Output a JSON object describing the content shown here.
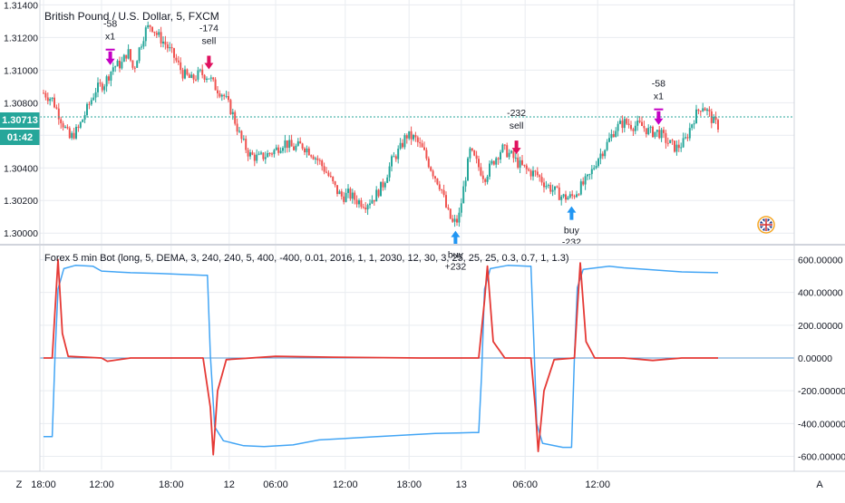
{
  "header": {
    "symbol_title": "British Pound / U.S. Dollar, 5, FXCM",
    "indicator_title": "Forex 5 min Bot (long, 5, DEMA, 3, 240, 240, 5, 400, -400, 0.01, 2016, 1, 1, 2030, 12, 30, 3, 25, 25, 25, 0.3, 0.7, 1, 1.3)"
  },
  "price_badge": {
    "value": "1.30713",
    "countdown": "01:42"
  },
  "colors": {
    "up": "#26a69a",
    "down": "#ef5350",
    "sell_arrow": "#e0115f",
    "buy_arrow": "#2196f3",
    "exit_marker": "#c400c4",
    "indicator_blue": "#42a5f5",
    "indicator_red": "#e53935",
    "price_line": "#26a69a",
    "grid": "#e9ecf1",
    "axis_text": "#131722"
  },
  "toolbar": {
    "left_label": "Z",
    "right_label": "A"
  },
  "flag_icon": "uk-flag-icon",
  "chart_data": [
    {
      "type": "candlestick",
      "title": "British Pound / U.S. Dollar, 5, FXCM",
      "y_ticks": [
        "1.31400",
        "1.31200",
        "1.31000",
        "1.30800",
        "1.30600",
        "1.30400",
        "1.30200",
        "1.30000"
      ],
      "ylim": [
        1.2994,
        1.3143
      ],
      "current_price": 1.30713,
      "path": [
        [
          0,
          1.3086
        ],
        [
          6,
          1.3082
        ],
        [
          12,
          1.307
        ],
        [
          18,
          1.3058
        ],
        [
          24,
          1.3064
        ],
        [
          30,
          1.3076
        ],
        [
          36,
          1.3088
        ],
        [
          42,
          1.3092
        ],
        [
          48,
          1.3102
        ],
        [
          54,
          1.3104
        ],
        [
          58,
          1.3112
        ],
        [
          62,
          1.31
        ],
        [
          66,
          1.3113
        ],
        [
          70,
          1.3124
        ],
        [
          74,
          1.3128
        ],
        [
          78,
          1.3122
        ],
        [
          84,
          1.3116
        ],
        [
          90,
          1.3108
        ],
        [
          96,
          1.3098
        ],
        [
          102,
          1.3094
        ],
        [
          108,
          1.3098
        ],
        [
          114,
          1.3096
        ],
        [
          118,
          1.309
        ],
        [
          124,
          1.3085
        ],
        [
          130,
          1.3074
        ],
        [
          136,
          1.3058
        ],
        [
          142,
          1.3048
        ],
        [
          148,
          1.3046
        ],
        [
          154,
          1.3048
        ],
        [
          160,
          1.3051
        ],
        [
          166,
          1.3056
        ],
        [
          172,
          1.3052
        ],
        [
          178,
          1.3054
        ],
        [
          184,
          1.305
        ],
        [
          190,
          1.3044
        ],
        [
          196,
          1.3036
        ],
        [
          202,
          1.3026
        ],
        [
          206,
          1.3022
        ],
        [
          210,
          1.3024
        ],
        [
          216,
          1.302
        ],
        [
          222,
          1.3018
        ],
        [
          228,
          1.3022
        ],
        [
          234,
          1.303
        ],
        [
          240,
          1.3044
        ],
        [
          246,
          1.3052
        ],
        [
          250,
          1.306
        ],
        [
          256,
          1.3058
        ],
        [
          262,
          1.305
        ],
        [
          268,
          1.3038
        ],
        [
          274,
          1.3028
        ],
        [
          278,
          1.3014
        ],
        [
          282,
          1.3006
        ],
        [
          286,
          1.3008
        ],
        [
          290,
          1.303
        ],
        [
          294,
          1.305
        ],
        [
          298,
          1.3044
        ],
        [
          304,
          1.3034
        ],
        [
          310,
          1.3044
        ],
        [
          316,
          1.3052
        ],
        [
          322,
          1.3048
        ],
        [
          328,
          1.3042
        ],
        [
          334,
          1.3038
        ],
        [
          340,
          1.3036
        ],
        [
          346,
          1.303
        ],
        [
          352,
          1.3026
        ],
        [
          358,
          1.3022
        ],
        [
          364,
          1.3022
        ],
        [
          370,
          1.3028
        ],
        [
          376,
          1.3034
        ],
        [
          382,
          1.3046
        ],
        [
          388,
          1.3054
        ],
        [
          394,
          1.3064
        ],
        [
          400,
          1.3068
        ],
        [
          406,
          1.3066
        ],
        [
          412,
          1.3066
        ],
        [
          418,
          1.3062
        ],
        [
          424,
          1.3062
        ],
        [
          430,
          1.3056
        ],
        [
          436,
          1.3052
        ],
        [
          442,
          1.3056
        ],
        [
          448,
          1.307
        ],
        [
          454,
          1.3079
        ],
        [
          458,
          1.3074
        ],
        [
          462,
          1.3068
        ],
        [
          465,
          1.3066
        ]
      ],
      "markers": [
        {
          "kind": "exit",
          "label": "-58",
          "label2": "x1",
          "x": 46
        },
        {
          "kind": "sell",
          "label": "-174",
          "label2": "sell",
          "x": 114
        },
        {
          "kind": "buy",
          "label": "buy",
          "label2": "+232",
          "x": 284
        },
        {
          "kind": "sell",
          "label": "-232",
          "label2": "sell",
          "x": 326
        },
        {
          "kind": "buy",
          "label": "buy",
          "label2": "-232",
          "x": 364
        },
        {
          "kind": "exit",
          "label": "-58",
          "label2": "x1",
          "x": 424
        }
      ]
    },
    {
      "type": "line",
      "title": "Forex 5 min Bot (long, 5, DEMA, 3, 240, 240, 5, 400, -400, 0.01, 2016, 1, 1, 2030, 12, 30, 3, 25, 25, 25, 0.3, 0.7, 1, 1.3)",
      "y_ticks": [
        "600.00000",
        "400.00000",
        "200.00000",
        "0.00000",
        "-200.00000",
        "-400.00000",
        "-600.00000"
      ],
      "ylim": [
        -680,
        680
      ],
      "series": [
        {
          "color": "#42a5f5",
          "points": [
            [
              0,
              -480
            ],
            [
              6,
              -480
            ],
            [
              8,
              30
            ],
            [
              10,
              420
            ],
            [
              14,
              545
            ],
            [
              22,
              565
            ],
            [
              34,
              560
            ],
            [
              40,
              530
            ],
            [
              60,
              520
            ],
            [
              80,
              515
            ],
            [
              110,
              505
            ],
            [
              113,
              505
            ],
            [
              115,
              20
            ],
            [
              118,
              -420
            ],
            [
              124,
              -505
            ],
            [
              138,
              -535
            ],
            [
              152,
              -540
            ],
            [
              172,
              -530
            ],
            [
              190,
              -500
            ],
            [
              230,
              -480
            ],
            [
              270,
              -460
            ],
            [
              296,
              -455
            ],
            [
              300,
              -455
            ],
            [
              302,
              -100
            ],
            [
              304,
              420
            ],
            [
              308,
              545
            ],
            [
              320,
              565
            ],
            [
              334,
              560
            ],
            [
              336,
              560
            ],
            [
              338,
              100
            ],
            [
              340,
              -400
            ],
            [
              344,
              -520
            ],
            [
              358,
              -545
            ],
            [
              364,
              -545
            ],
            [
              366,
              10
            ],
            [
              368,
              430
            ],
            [
              372,
              540
            ],
            [
              390,
              560
            ],
            [
              400,
              550
            ],
            [
              440,
              525
            ],
            [
              465,
              520
            ]
          ]
        },
        {
          "color": "#e53935",
          "points": [
            [
              0,
              0
            ],
            [
              6,
              0
            ],
            [
              10,
              600
            ],
            [
              13,
              150
            ],
            [
              17,
              10
            ],
            [
              40,
              0
            ],
            [
              44,
              -20
            ],
            [
              60,
              0
            ],
            [
              110,
              0
            ],
            [
              115,
              -300
            ],
            [
              117,
              -590
            ],
            [
              120,
              -200
            ],
            [
              126,
              -10
            ],
            [
              160,
              10
            ],
            [
              200,
              5
            ],
            [
              260,
              0
            ],
            [
              300,
              0
            ],
            [
              304,
              350
            ],
            [
              306,
              560
            ],
            [
              310,
              100
            ],
            [
              318,
              0
            ],
            [
              336,
              0
            ],
            [
              339,
              -300
            ],
            [
              341,
              -570
            ],
            [
              345,
              -200
            ],
            [
              352,
              -10
            ],
            [
              366,
              0
            ],
            [
              368,
              300
            ],
            [
              370,
              580
            ],
            [
              374,
              100
            ],
            [
              380,
              0
            ],
            [
              400,
              0
            ],
            [
              420,
              -15
            ],
            [
              440,
              0
            ],
            [
              465,
              0
            ]
          ]
        }
      ]
    }
  ],
  "x_axis": {
    "labels": [
      "18:00",
      "12:00",
      "18:00",
      "12",
      "06:00",
      "12:00",
      "18:00",
      "13",
      "06:00",
      "12:00"
    ],
    "positions": [
      0,
      40,
      88,
      128,
      160,
      208,
      252,
      288,
      332,
      382
    ]
  }
}
